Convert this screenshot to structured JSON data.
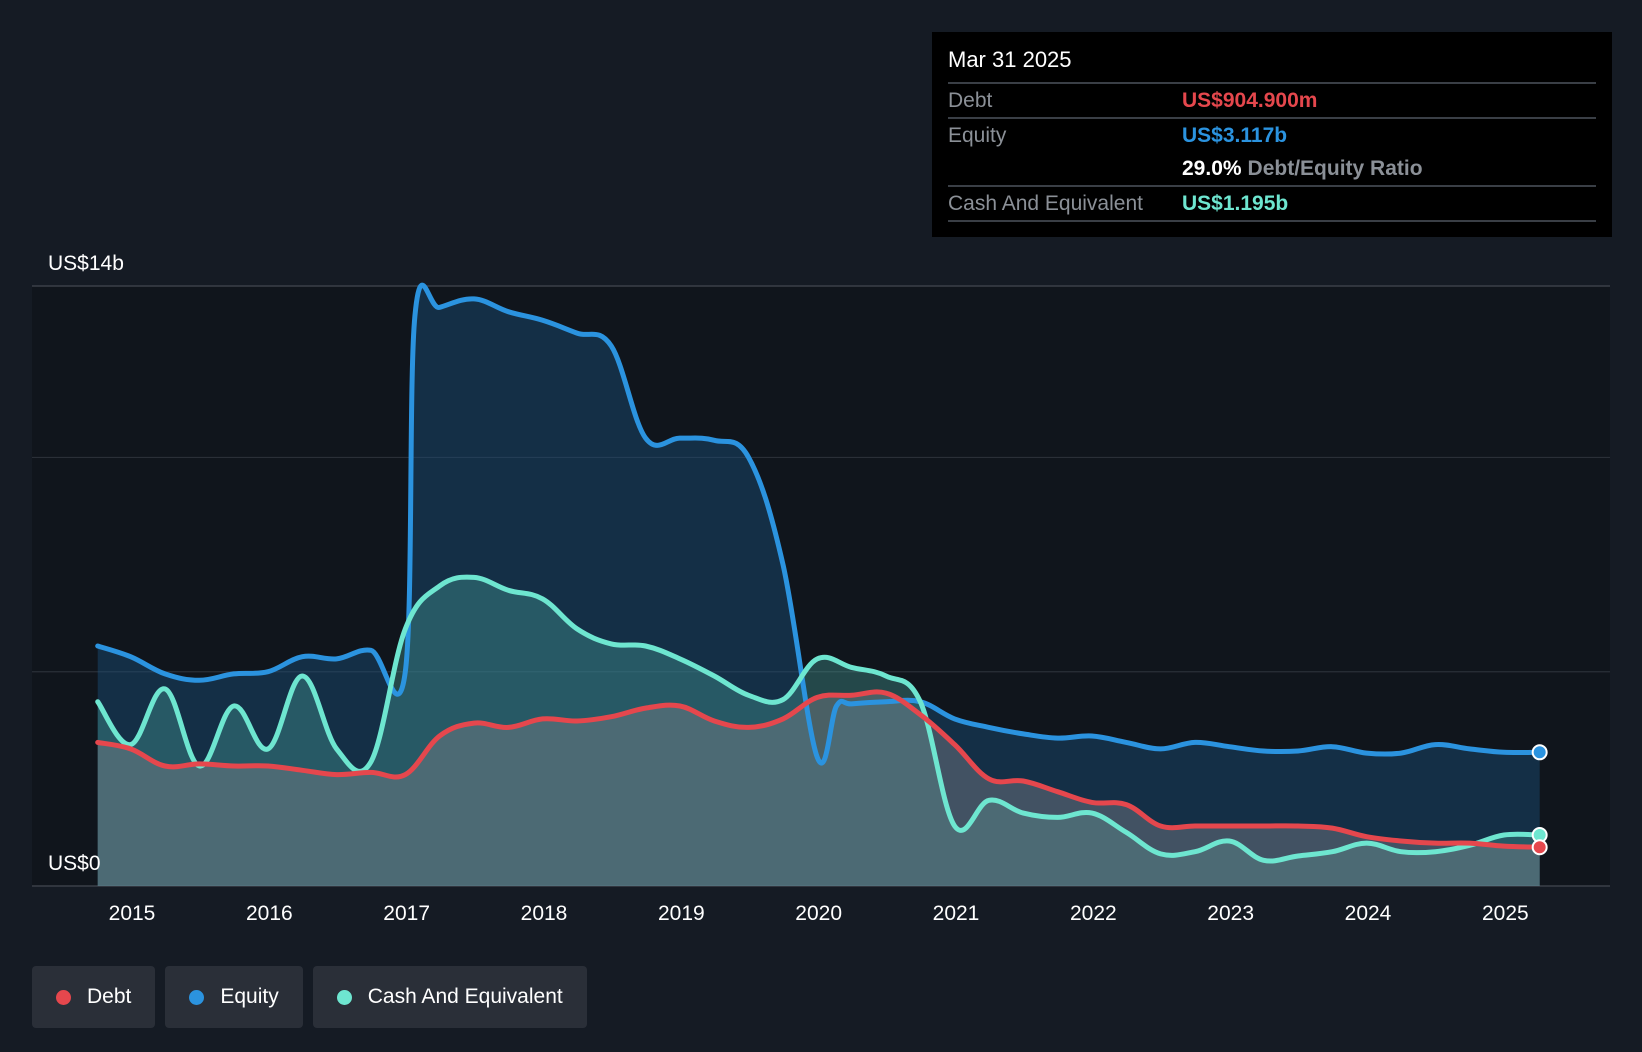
{
  "tooltip": {
    "date": "Mar 31 2025",
    "debt_label": "Debt",
    "debt_value": "US$904.900m",
    "equity_label": "Equity",
    "equity_value": "US$3.117b",
    "ratio_value": "29.0%",
    "ratio_label": "Debt/Equity Ratio",
    "cash_label": "Cash And Equivalent",
    "cash_value": "US$1.195b"
  },
  "legend": [
    {
      "label": "Debt",
      "color": "#e5474d"
    },
    {
      "label": "Equity",
      "color": "#2b93df"
    },
    {
      "label": "Cash And Equivalent",
      "color": "#6ee6d0"
    }
  ],
  "chart_data": {
    "type": "area",
    "y_top_label": "US$14b",
    "y_bottom_label": "US$0",
    "ylim": [
      0,
      14
    ],
    "xlim": [
      2014.0,
      2025.25
    ],
    "x_ticks": [
      "2015",
      "2016",
      "2017",
      "2018",
      "2019",
      "2020",
      "2021",
      "2022",
      "2023",
      "2024",
      "2025"
    ],
    "series": [
      {
        "name": "Equity",
        "color": "#2b93df",
        "x": [
          2014.75,
          2014.99,
          2015.24,
          2015.49,
          2015.74,
          2015.99,
          2016.24,
          2016.49,
          2016.74,
          2016.99,
          2017.06,
          2017.24,
          2017.49,
          2017.74,
          2017.99,
          2018.24,
          2018.49,
          2018.74,
          2018.99,
          2019.24,
          2019.49,
          2019.74,
          2019.99,
          2020.13,
          2020.24,
          2020.49,
          2020.74,
          2020.99,
          2021.24,
          2021.49,
          2021.74,
          2021.99,
          2022.24,
          2022.49,
          2022.74,
          2022.99,
          2023.24,
          2023.49,
          2023.74,
          2023.99,
          2024.24,
          2024.49,
          2024.74,
          2024.99,
          2025.25
        ],
        "values": [
          5.6,
          5.35,
          4.95,
          4.8,
          4.95,
          5.0,
          5.35,
          5.3,
          5.5,
          5.0,
          13.3,
          13.5,
          13.7,
          13.4,
          13.2,
          12.9,
          12.6,
          10.45,
          10.45,
          10.4,
          10.0,
          7.5,
          3.0,
          4.2,
          4.25,
          4.3,
          4.3,
          3.9,
          3.7,
          3.55,
          3.45,
          3.5,
          3.35,
          3.2,
          3.35,
          3.25,
          3.15,
          3.15,
          3.25,
          3.1,
          3.1,
          3.3,
          3.2,
          3.12,
          3.12
        ],
        "marker": true
      },
      {
        "name": "Cash And Equivalent",
        "color": "#6ee6d0",
        "x": [
          2014.75,
          2014.99,
          2015.24,
          2015.49,
          2015.74,
          2015.99,
          2016.24,
          2016.49,
          2016.74,
          2016.99,
          2017.24,
          2017.49,
          2017.74,
          2017.99,
          2018.24,
          2018.49,
          2018.74,
          2018.99,
          2019.24,
          2019.49,
          2019.74,
          2019.99,
          2020.24,
          2020.49,
          2020.74,
          2020.99,
          2021.24,
          2021.49,
          2021.74,
          2021.99,
          2022.24,
          2022.49,
          2022.74,
          2022.99,
          2023.24,
          2023.49,
          2023.74,
          2023.99,
          2024.24,
          2024.49,
          2024.74,
          2024.99,
          2025.25
        ],
        "values": [
          4.3,
          3.3,
          4.6,
          2.8,
          4.2,
          3.2,
          4.9,
          3.2,
          2.9,
          6.0,
          7.0,
          7.2,
          6.9,
          6.7,
          6.0,
          5.65,
          5.6,
          5.3,
          4.9,
          4.45,
          4.35,
          5.3,
          5.1,
          4.9,
          4.3,
          1.4,
          2.0,
          1.7,
          1.6,
          1.7,
          1.25,
          0.75,
          0.8,
          1.05,
          0.6,
          0.7,
          0.8,
          1.0,
          0.8,
          0.8,
          0.95,
          1.19,
          1.19
        ],
        "marker": true
      },
      {
        "name": "Debt",
        "color": "#e5474d",
        "x": [
          2014.75,
          2014.99,
          2015.24,
          2015.49,
          2015.74,
          2015.99,
          2016.24,
          2016.49,
          2016.74,
          2016.99,
          2017.24,
          2017.49,
          2017.74,
          2017.99,
          2018.24,
          2018.49,
          2018.74,
          2018.99,
          2019.24,
          2019.49,
          2019.74,
          2019.99,
          2020.24,
          2020.49,
          2020.74,
          2020.99,
          2021.24,
          2021.49,
          2021.74,
          2021.99,
          2022.24,
          2022.49,
          2022.74,
          2022.99,
          2023.24,
          2023.49,
          2023.74,
          2023.99,
          2024.24,
          2024.49,
          2024.74,
          2024.99,
          2025.25
        ],
        "values": [
          3.35,
          3.2,
          2.8,
          2.85,
          2.8,
          2.8,
          2.7,
          2.6,
          2.65,
          2.6,
          3.5,
          3.8,
          3.7,
          3.9,
          3.85,
          3.95,
          4.15,
          4.2,
          3.85,
          3.7,
          3.9,
          4.4,
          4.45,
          4.5,
          4.0,
          3.3,
          2.5,
          2.45,
          2.2,
          1.95,
          1.9,
          1.4,
          1.4,
          1.4,
          1.4,
          1.4,
          1.35,
          1.15,
          1.05,
          1.0,
          1.0,
          0.93,
          0.905
        ],
        "marker": true
      }
    ],
    "grid": true,
    "gridlines_y": [
      5,
      10
    ],
    "legend_position": "bottom-left"
  }
}
